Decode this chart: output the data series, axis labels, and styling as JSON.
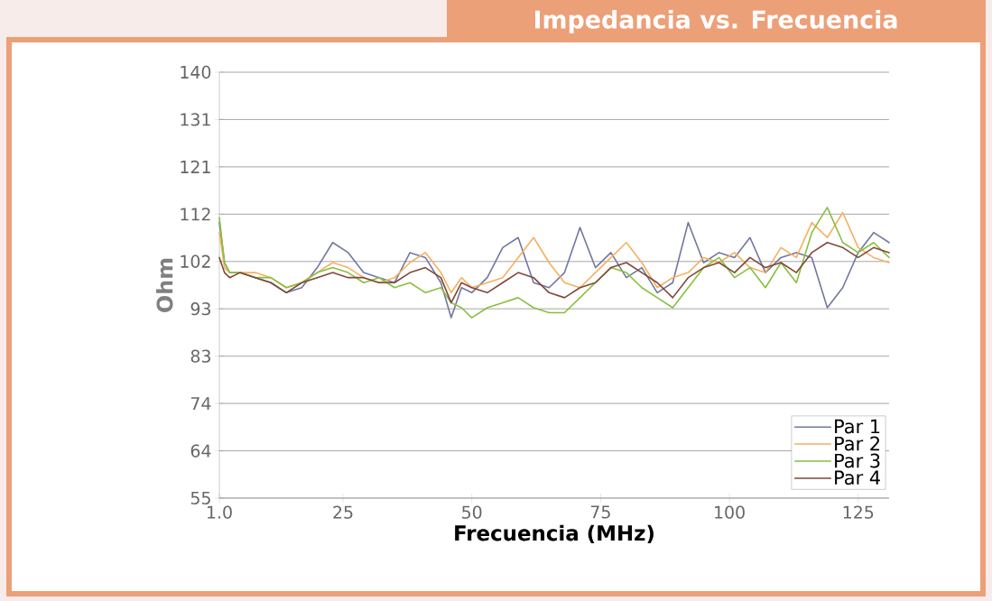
{
  "chart_data": {
    "type": "line",
    "title": "Impedancia vs. Frecuencia",
    "xlabel": "Frecuencia (MHz)",
    "ylabel": "Ohm",
    "x": [
      1,
      2,
      3,
      5,
      8,
      11,
      14,
      17,
      20,
      23,
      26,
      29,
      32,
      35,
      38,
      41,
      44,
      46,
      48,
      50,
      53,
      56,
      59,
      62,
      65,
      68,
      71,
      74,
      77,
      80,
      83,
      86,
      89,
      92,
      95,
      98,
      101,
      104,
      107,
      110,
      113,
      116,
      119,
      122,
      125,
      128,
      131
    ],
    "series": [
      {
        "name": "Par 1",
        "color": "#7078a0",
        "values": [
          110,
          102,
          100,
          100,
          99,
          98,
          96,
          97,
          101,
          106,
          104,
          100,
          99,
          98,
          104,
          103,
          98,
          91,
          97,
          96,
          99,
          105,
          107,
          98,
          97,
          100,
          109,
          101,
          104,
          99,
          101,
          96,
          98,
          110,
          102,
          104,
          103,
          107,
          100,
          103,
          104,
          103,
          93,
          97,
          104,
          108,
          106
        ]
      },
      {
        "name": "Par 2",
        "color": "#f5b060",
        "values": [
          108,
          101,
          100,
          100,
          100,
          99,
          97,
          98,
          100,
          102,
          101,
          99,
          98,
          99,
          102,
          104,
          100,
          96,
          99,
          97,
          98,
          99,
          103,
          107,
          102,
          98,
          97,
          100,
          103,
          106,
          102,
          97,
          99,
          100,
          103,
          102,
          104,
          101,
          100,
          105,
          103,
          110,
          107,
          112,
          105,
          103,
          102
        ]
      },
      {
        "name": "Par 3",
        "color": "#88c040",
        "values": [
          111,
          102,
          100,
          100,
          99,
          99,
          97,
          98,
          100,
          101,
          100,
          98,
          99,
          97,
          98,
          96,
          97,
          94,
          93,
          91,
          93,
          94,
          95,
          93,
          92,
          92,
          95,
          98,
          101,
          100,
          97,
          95,
          93,
          97,
          101,
          103,
          99,
          101,
          97,
          102,
          98,
          108,
          113,
          106,
          104,
          106,
          103
        ]
      },
      {
        "name": "Par 4",
        "color": "#804838",
        "values": [
          103,
          100,
          99,
          100,
          99,
          98,
          96,
          98,
          99,
          100,
          99,
          99,
          98,
          98,
          100,
          101,
          99,
          94,
          98,
          97,
          96,
          98,
          100,
          99,
          96,
          95,
          97,
          98,
          101,
          102,
          100,
          98,
          95,
          99,
          101,
          102,
          100,
          103,
          101,
          102,
          100,
          104,
          106,
          105,
          103,
          105,
          104
        ]
      }
    ],
    "xlim": [
      1,
      131
    ],
    "ylim": [
      55,
      140
    ],
    "xticks": [
      {
        "value": 1,
        "label": "1.0"
      },
      25,
      50,
      75,
      100,
      125
    ],
    "yticks": [
      55,
      {
        "value": 64.44,
        "label": "64"
      },
      {
        "value": 73.89,
        "label": "74"
      },
      {
        "value": 83.33,
        "label": "83"
      },
      {
        "value": 92.78,
        "label": "93"
      },
      {
        "value": 102.22,
        "label": "102"
      },
      {
        "value": 111.67,
        "label": "112"
      },
      {
        "value": 121.11,
        "label": "121"
      },
      {
        "value": 130.56,
        "label": "131"
      },
      140
    ],
    "grid": "y",
    "legend": "bottom right",
    "line_style": "solid"
  }
}
